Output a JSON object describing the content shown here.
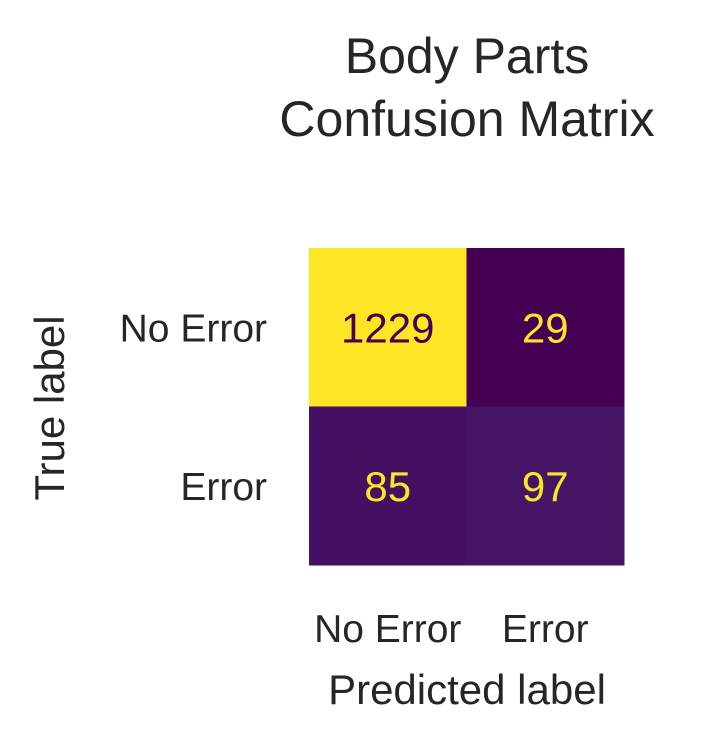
{
  "chart_data": {
    "type": "heatmap",
    "title": [
      "Body Parts",
      "Confusion Matrix"
    ],
    "xlabel": "Predicted label",
    "ylabel": "True label",
    "x_categories": [
      "No Error",
      "Error"
    ],
    "y_categories": [
      "No Error",
      "Error"
    ],
    "values": [
      [
        1229,
        29
      ],
      [
        85,
        97
      ]
    ],
    "colormap": "viridis",
    "colors": {
      "low": "#440154",
      "high": "#fde725",
      "text_on_dark": "#fde725",
      "text_on_light": "#440154",
      "label_text": "#262626"
    },
    "grid": false
  }
}
